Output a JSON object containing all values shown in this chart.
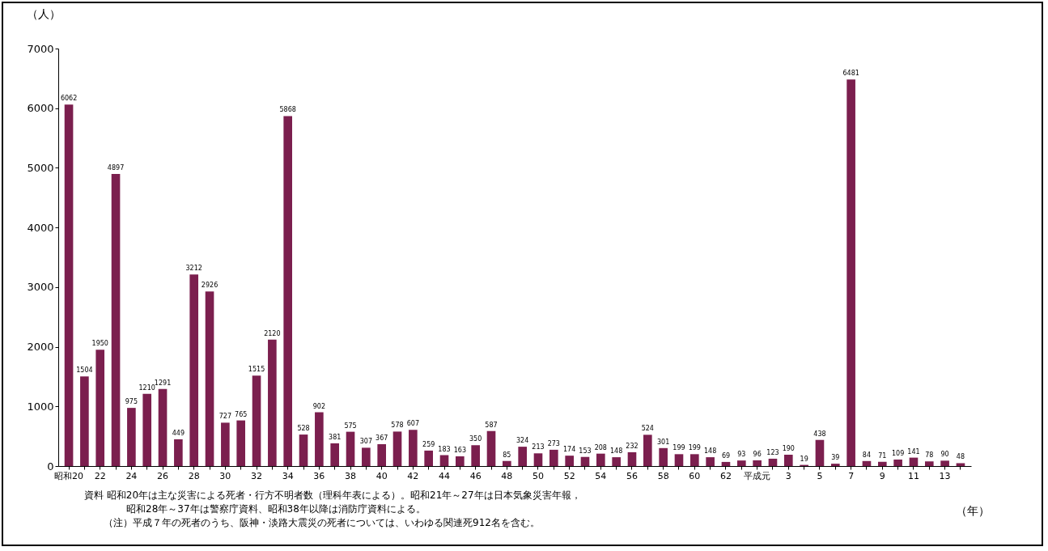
{
  "chart_data": {
    "type": "bar",
    "ylabel": "（人）",
    "xlabel": "（年）",
    "categories": [
      "昭和20",
      null,
      "22",
      null,
      "24",
      null,
      "26",
      null,
      "28",
      null,
      "30",
      null,
      "32",
      null,
      "34",
      null,
      "36",
      null,
      "38",
      null,
      "40",
      null,
      "42",
      null,
      "44",
      null,
      "46",
      null,
      "48",
      null,
      "50",
      null,
      "52",
      null,
      "54",
      null,
      "56",
      null,
      "58",
      null,
      "60",
      null,
      "62",
      null,
      "平成元",
      null,
      "3",
      null,
      "5",
      null,
      "7",
      null,
      "9",
      null,
      "11",
      null,
      "13",
      null
    ],
    "values": [
      6062,
      1504,
      1950,
      4897,
      975,
      1210,
      1291,
      449,
      3212,
      2926,
      727,
      765,
      1515,
      2120,
      5868,
      528,
      902,
      381,
      575,
      307,
      367,
      578,
      607,
      259,
      183,
      163,
      350,
      587,
      85,
      324,
      213,
      273,
      174,
      153,
      208,
      148,
      232,
      524,
      301,
      199,
      199,
      148,
      69,
      93,
      96,
      123,
      190,
      19,
      438,
      39,
      6481,
      84,
      71,
      109,
      141,
      78,
      90,
      48
    ],
    "color": "#7b1f4e",
    "ylim": [
      0,
      7000
    ],
    "yticks": [
      0,
      1000,
      2000,
      3000,
      4000,
      5000,
      6000,
      7000
    ],
    "grid": false,
    "data_labels": true,
    "annotations": [
      "資料 昭和20年は主な災害による死者・行方不明者数（理科年表による）。昭和21年～27年は日本気象災害年報，",
      "昭和28年～37年は警察庁資料、昭和38年以降は消防庁資料による。",
      "（注）平成７年の死者のうち、阪神・淡路大震災の死者については、いわゆる関連死912名を含む。"
    ]
  }
}
